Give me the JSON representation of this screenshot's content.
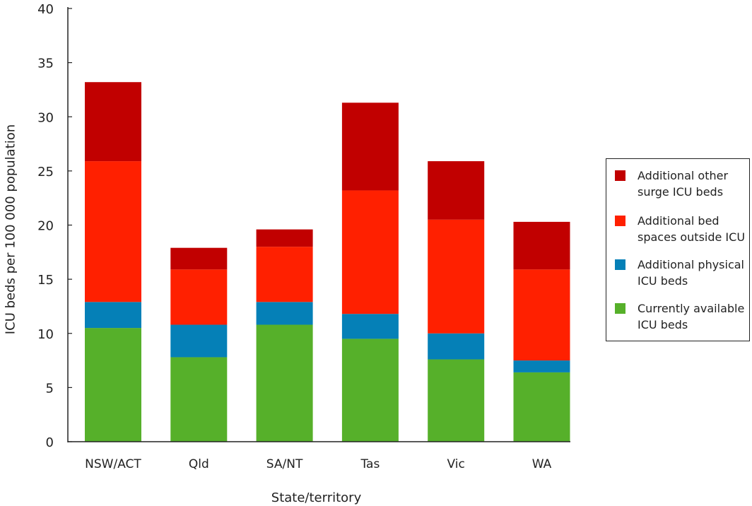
{
  "chart_data": {
    "type": "bar",
    "stacked": true,
    "title": "",
    "xlabel": "State/territory",
    "ylabel": "ICU beds per 100 000 population",
    "ylim": [
      0,
      40
    ],
    "yticks": [
      "0",
      "5",
      "10",
      "15",
      "20",
      "25",
      "30",
      "35",
      "40"
    ],
    "categories": [
      "NSW/ACT",
      "Qld",
      "SA/NT",
      "Tas",
      "Vic",
      "WA"
    ],
    "series": [
      {
        "name": "Currently available ICU beds",
        "color": "#56b02a",
        "values": [
          10.5,
          7.8,
          10.8,
          9.5,
          7.6,
          6.4
        ]
      },
      {
        "name": "Additional physical ICU beds",
        "color": "#0580b7",
        "values": [
          2.4,
          3.0,
          2.1,
          2.3,
          2.4,
          1.1
        ]
      },
      {
        "name": "Additional bed spaces outside ICU",
        "color": "#ff2000",
        "values": [
          13.0,
          5.1,
          5.1,
          11.4,
          10.5,
          8.4
        ]
      },
      {
        "name": "Additional other surge ICU beds",
        "color": "#c10000",
        "values": [
          7.3,
          2.0,
          1.6,
          8.1,
          5.4,
          4.4
        ]
      }
    ],
    "legend_placement": "right",
    "grid": false
  },
  "legend": [
    {
      "label": "Additional other surge ICU beds",
      "color": "#c10000"
    },
    {
      "label": "Additional bed spaces outside ICU",
      "color": "#ff2000"
    },
    {
      "label": "Additional physical ICU beds",
      "color": "#0580b7"
    },
    {
      "label": "Currently available ICU beds",
      "color": "#56b02a"
    }
  ]
}
